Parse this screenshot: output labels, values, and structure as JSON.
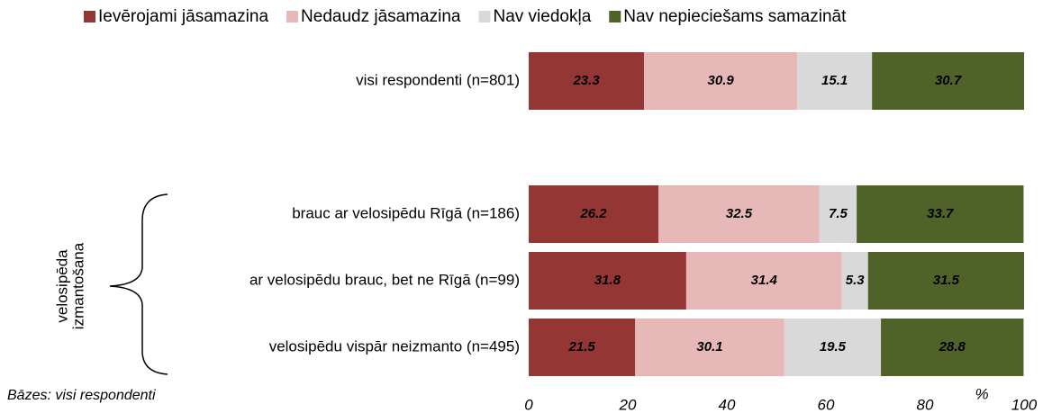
{
  "chart_data": {
    "type": "stacked_barh",
    "categories": [
      "visi respondenti (n=801)",
      null,
      "brauc ar velosipēdu Rīgā (n=186)",
      "ar velosipēdu brauc, bet ne Rīgā (n=99)",
      "velosipēdu vispār neizmanto (n=495)"
    ],
    "series": [
      {
        "name": "Ievērojami jāsamazina",
        "color": "#943634",
        "label_color": "#ffffff",
        "values": [
          23.3,
          null,
          26.2,
          31.8,
          21.5
        ]
      },
      {
        "name": "Nedaudz jāsamazina",
        "color": "#e6b9b8",
        "label_color": "#000000",
        "values": [
          30.9,
          null,
          32.5,
          31.4,
          30.1
        ]
      },
      {
        "name": "Nav viedokļa",
        "color": "#d9d9d9",
        "label_color": "#000000",
        "values": [
          15.1,
          null,
          7.5,
          5.3,
          19.5
        ]
      },
      {
        "name": "Nav nepieciešams samazināt",
        "color": "#4f6228",
        "label_color": "#ffffff",
        "values": [
          30.7,
          null,
          33.7,
          31.5,
          28.8
        ]
      }
    ],
    "xlim": [
      0,
      100
    ],
    "xticks": [
      0,
      20,
      40,
      60,
      80,
      100
    ],
    "x_unit": "%",
    "group_label": [
      "velosipēda",
      "izmantošana"
    ],
    "note": "Bāzes: visi respondenti",
    "legend": "top"
  }
}
